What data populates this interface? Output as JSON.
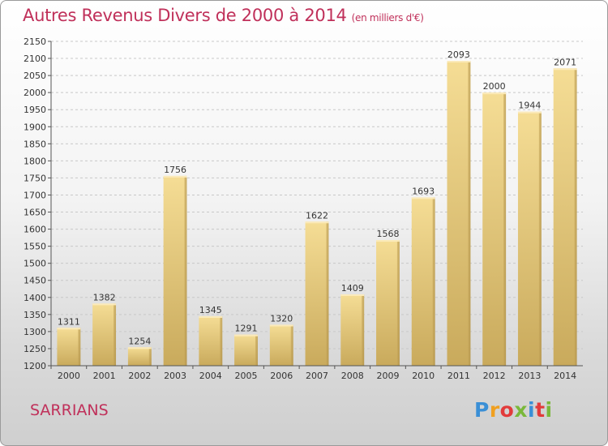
{
  "title": "Autres Revenus Divers de 2000 à 2014",
  "unit_note": "(en milliers d'€)",
  "city": "SARRIANS",
  "logo": {
    "text": "Proxiti",
    "colors": [
      "#3a8fd6",
      "#f0a020",
      "#e23b3b",
      "#7ab83a",
      "#3a8fd6",
      "#e23b3b",
      "#7ab83a"
    ]
  },
  "colors": {
    "bar": "#dcbc6a",
    "title": "#c0305a",
    "axis": "#333333",
    "grid": "#cccccc"
  },
  "chart_data": {
    "type": "bar",
    "title": "Autres Revenus Divers de 2000 à 2014",
    "categories": [
      "2000",
      "2001",
      "2002",
      "2003",
      "2004",
      "2005",
      "2006",
      "2007",
      "2008",
      "2009",
      "2010",
      "2011",
      "2012",
      "2013",
      "2014"
    ],
    "values": [
      1311,
      1382,
      1254,
      1756,
      1345,
      1291,
      1320,
      1622,
      1409,
      1568,
      1693,
      2093,
      2000,
      1944,
      2071
    ],
    "ylim": [
      1200,
      2150
    ],
    "ytick_step": 50,
    "grid": "horizontal dashed"
  }
}
